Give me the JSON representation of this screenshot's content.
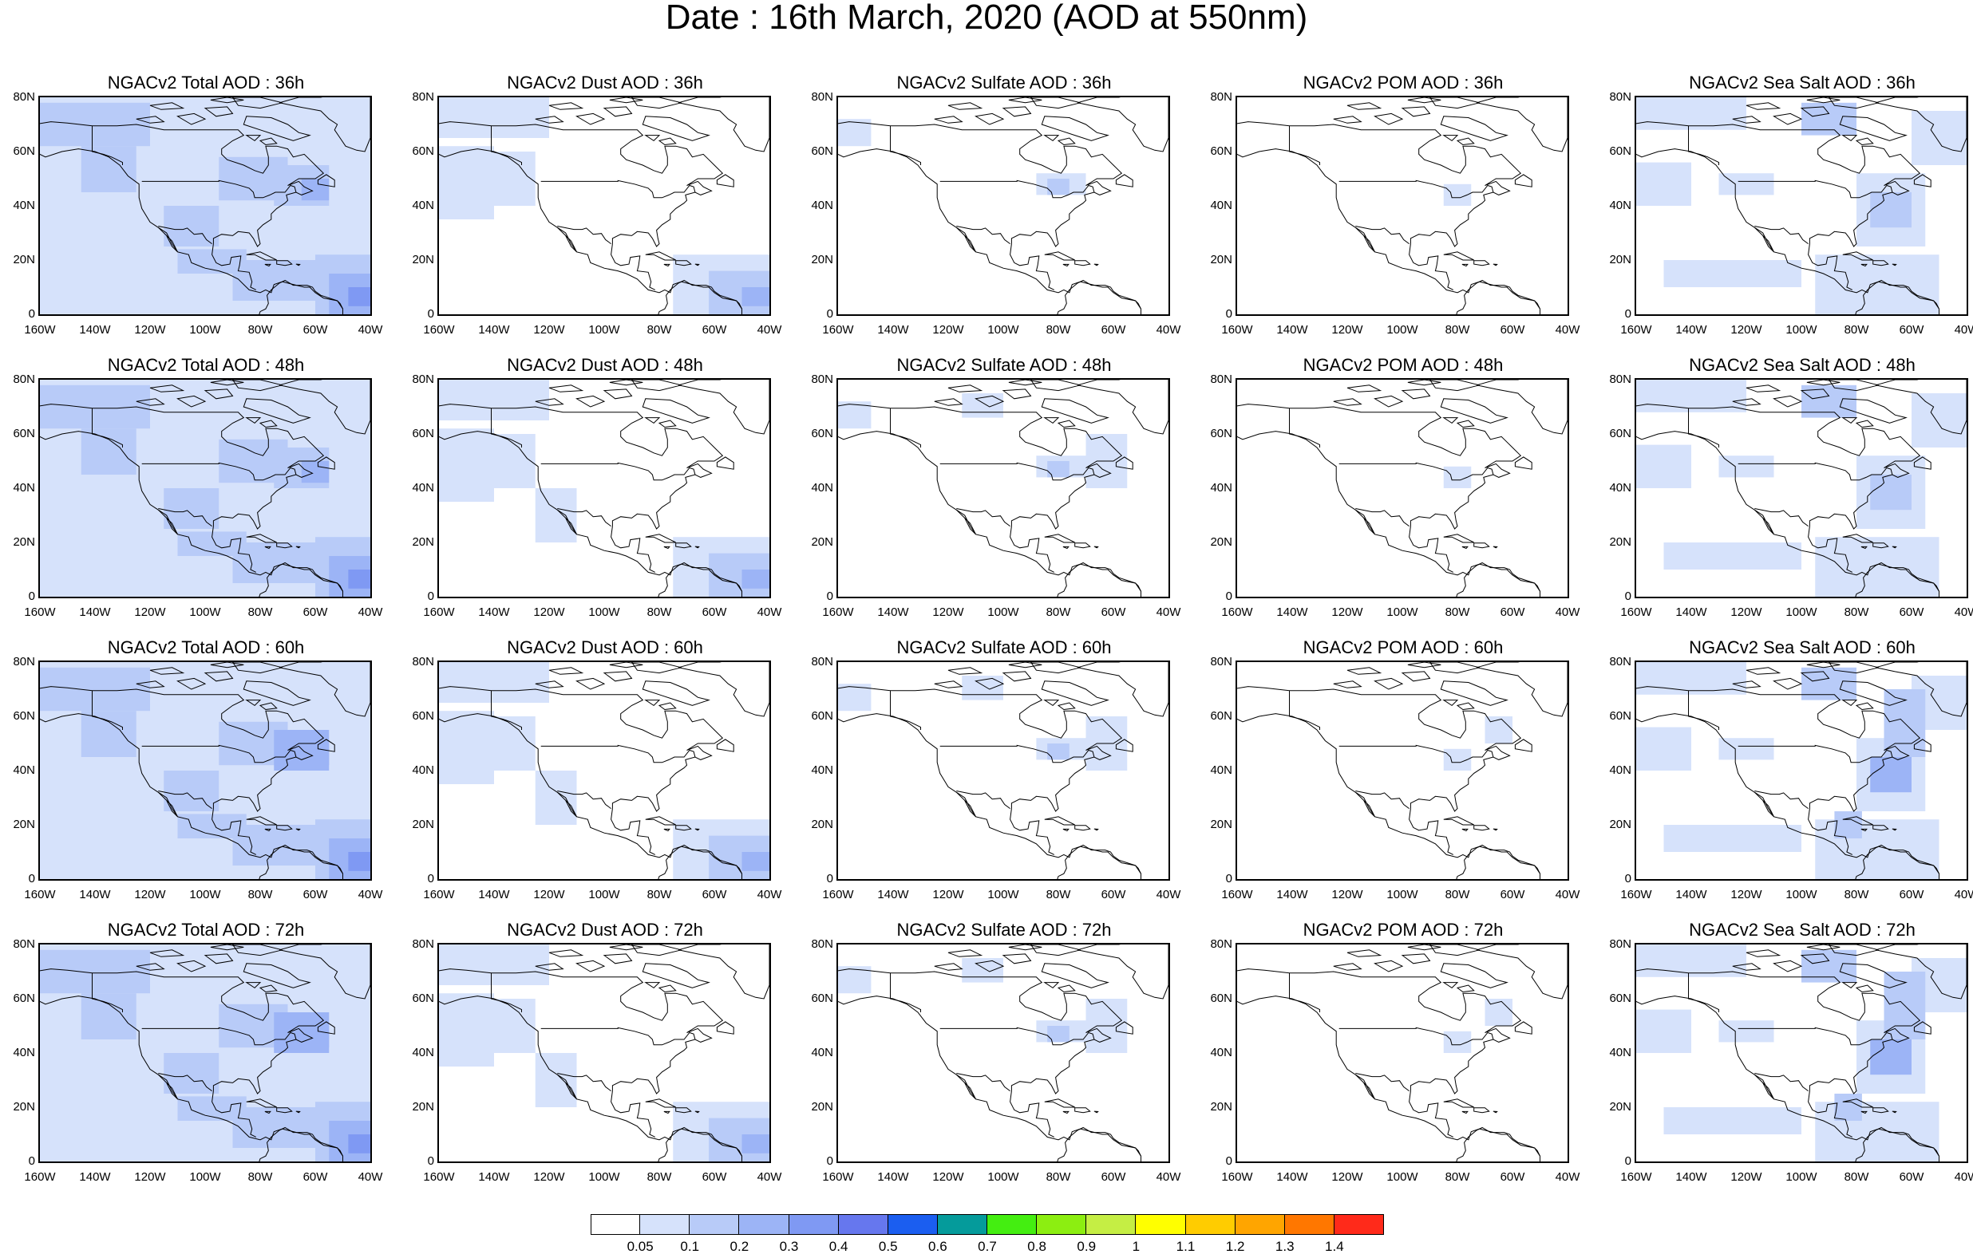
{
  "title": "Date : 16th March, 2020 (AOD at 550nm)",
  "y_ticks": [
    "80N",
    "60N",
    "40N",
    "20N",
    "0"
  ],
  "x_ticks": [
    "160W",
    "140W",
    "120W",
    "100W",
    "80W",
    "60W",
    "40W"
  ],
  "map_extent": {
    "lon": [
      -160,
      -40
    ],
    "lat": [
      0,
      80
    ]
  },
  "colors": {
    "coast": "#000000",
    "background": "#ffffff"
  },
  "panels": [
    {
      "title": "NGACv2 Total AOD : 36h",
      "variable": "total",
      "lead": 36
    },
    {
      "title": "NGACv2 Dust AOD : 36h",
      "variable": "dust",
      "lead": 36
    },
    {
      "title": "NGACv2 Sulfate AOD : 36h",
      "variable": "sulfate",
      "lead": 36
    },
    {
      "title": "NGACv2 POM AOD : 36h",
      "variable": "pom",
      "lead": 36
    },
    {
      "title": "NGACv2 Sea Salt AOD : 36h",
      "variable": "seasalt",
      "lead": 36
    },
    {
      "title": "NGACv2 Total AOD : 48h",
      "variable": "total",
      "lead": 48
    },
    {
      "title": "NGACv2 Dust AOD : 48h",
      "variable": "dust",
      "lead": 48
    },
    {
      "title": "NGACv2 Sulfate AOD : 48h",
      "variable": "sulfate",
      "lead": 48
    },
    {
      "title": "NGACv2 POM AOD : 48h",
      "variable": "pom",
      "lead": 48
    },
    {
      "title": "NGACv2 Sea Salt AOD : 48h",
      "variable": "seasalt",
      "lead": 48
    },
    {
      "title": "NGACv2 Total AOD : 60h",
      "variable": "total",
      "lead": 60
    },
    {
      "title": "NGACv2 Dust AOD : 60h",
      "variable": "dust",
      "lead": 60
    },
    {
      "title": "NGACv2 Sulfate AOD : 60h",
      "variable": "sulfate",
      "lead": 60
    },
    {
      "title": "NGACv2 POM AOD : 60h",
      "variable": "pom",
      "lead": 60
    },
    {
      "title": "NGACv2 Sea Salt AOD : 60h",
      "variable": "seasalt",
      "lead": 60
    },
    {
      "title": "NGACv2 Total AOD : 72h",
      "variable": "total",
      "lead": 72
    },
    {
      "title": "NGACv2 Dust AOD : 72h",
      "variable": "dust",
      "lead": 72
    },
    {
      "title": "NGACv2 Sulfate AOD : 72h",
      "variable": "sulfate",
      "lead": 72
    },
    {
      "title": "NGACv2 POM AOD : 72h",
      "variable": "pom",
      "lead": 72
    },
    {
      "title": "NGACv2 Sea Salt  AOD : 72h",
      "variable": "seasalt",
      "lead": 72
    }
  ],
  "colorbar": {
    "labels": [
      "0.05",
      "0.1",
      "0.2",
      "0.3",
      "0.4",
      "0.5",
      "0.6",
      "0.7",
      "0.8",
      "0.9",
      "1",
      "1.1",
      "1.2",
      "1.3",
      "1.4"
    ],
    "colors": [
      "#ffffff",
      "#d6e2fb",
      "#b8cbf8",
      "#9cb4f6",
      "#7f99f3",
      "#6677ee",
      "#1b5ef0",
      "#059b9b",
      "#44ee11",
      "#8cee11",
      "#c5ee44",
      "#ffff00",
      "#ffcc00",
      "#ffa500",
      "#ff7700",
      "#ff2a1a"
    ]
  }
}
